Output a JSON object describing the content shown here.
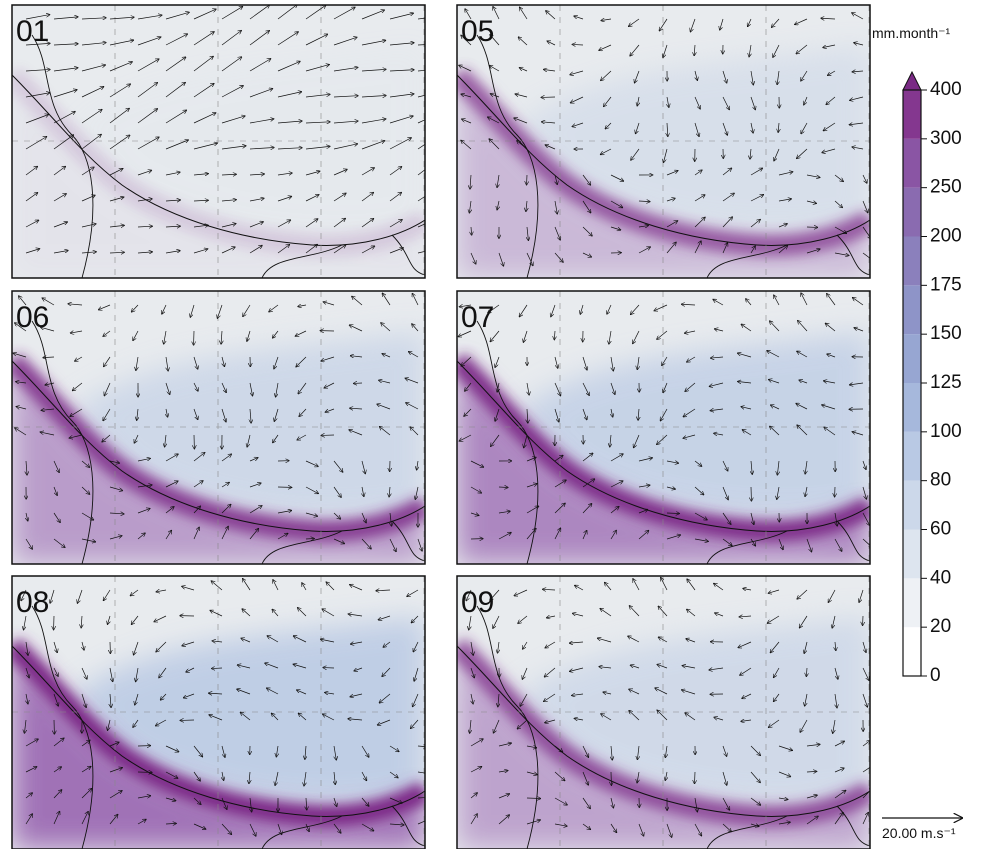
{
  "panels": [
    {
      "label": "01"
    },
    {
      "label": "05"
    },
    {
      "label": "06"
    },
    {
      "label": "07"
    },
    {
      "label": "08"
    },
    {
      "label": "09"
    }
  ],
  "colorbar": {
    "unit": "mm.month⁻¹",
    "ticks": [
      0,
      20,
      40,
      60,
      80,
      100,
      125,
      150,
      175,
      200,
      250,
      300,
      400
    ]
  },
  "reference_vector": {
    "label": "20.00 m.s⁻¹"
  }
}
